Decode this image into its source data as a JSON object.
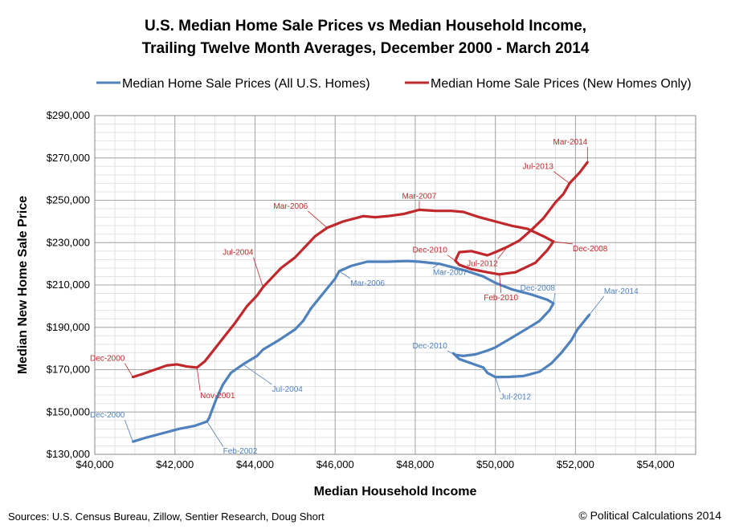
{
  "chart_data": {
    "type": "line",
    "title": "U.S. Median Home Sale Prices vs Median Household Income,",
    "subtitle": "Trailing Twelve Month Averages, December 2000 - March 2014",
    "xlabel": "Median Household Income",
    "ylabel": "Median New Home Sale Price",
    "xlim": [
      40000,
      55000
    ],
    "ylim": [
      130000,
      290000
    ],
    "x_ticks": [
      40000,
      42000,
      44000,
      46000,
      48000,
      50000,
      52000,
      54000
    ],
    "x_tick_labels": [
      "$40,000",
      "$42,000",
      "$44,000",
      "$46,000",
      "$48,000",
      "$50,000",
      "$52,000",
      "$54,000"
    ],
    "y_ticks": [
      130000,
      150000,
      170000,
      190000,
      210000,
      230000,
      250000,
      270000,
      290000
    ],
    "y_tick_labels": [
      "$130,000",
      "$150,000",
      "$170,000",
      "$190,000",
      "$210,000",
      "$230,000",
      "$250,000",
      "$270,000",
      "$290,000"
    ],
    "grid": true,
    "legend_position": "top",
    "series": [
      {
        "name": "Median Home Sale Prices (All U.S. Homes)",
        "color": "#4f81bd",
        "points": [
          [
            40950,
            136000
          ],
          [
            41300,
            138000
          ],
          [
            41700,
            140000
          ],
          [
            42100,
            142000
          ],
          [
            42500,
            143500
          ],
          [
            42800,
            145500
          ],
          [
            42850,
            147000
          ],
          [
            42950,
            152000
          ],
          [
            43050,
            157000
          ],
          [
            43200,
            163000
          ],
          [
            43400,
            168500
          ],
          [
            43700,
            172500
          ],
          [
            44050,
            176500
          ],
          [
            44200,
            179500
          ],
          [
            44600,
            184000
          ],
          [
            45000,
            189000
          ],
          [
            45200,
            193000
          ],
          [
            45400,
            199000
          ],
          [
            45700,
            206000
          ],
          [
            46000,
            213000
          ],
          [
            46100,
            216500
          ],
          [
            46400,
            219000
          ],
          [
            46800,
            221000
          ],
          [
            47300,
            221000
          ],
          [
            47800,
            221300
          ],
          [
            48100,
            221000
          ],
          [
            48600,
            220000
          ],
          [
            48900,
            218500
          ],
          [
            49300,
            216500
          ],
          [
            49700,
            214000
          ],
          [
            50000,
            211000
          ],
          [
            50400,
            208000
          ],
          [
            50900,
            205500
          ],
          [
            51300,
            203000
          ],
          [
            51450,
            201300
          ],
          [
            51350,
            198000
          ],
          [
            51100,
            193000
          ],
          [
            50800,
            189500
          ],
          [
            50400,
            185000
          ],
          [
            50000,
            180500
          ],
          [
            49800,
            179000
          ],
          [
            49500,
            177200
          ],
          [
            49200,
            176500
          ],
          [
            49000,
            177000
          ],
          [
            48950,
            177700
          ],
          [
            49100,
            175000
          ],
          [
            49400,
            173000
          ],
          [
            49700,
            171000
          ],
          [
            49800,
            168500
          ],
          [
            50000,
            166500
          ],
          [
            50350,
            166600
          ],
          [
            50700,
            167000
          ],
          [
            51100,
            169000
          ],
          [
            51400,
            173000
          ],
          [
            51650,
            178000
          ],
          [
            51900,
            184000
          ],
          [
            52050,
            189000
          ],
          [
            52200,
            192500
          ],
          [
            52350,
            196000
          ]
        ],
        "labels": [
          {
            "text": "Dec-2000",
            "index": 0
          },
          {
            "text": "Feb-2002",
            "index": 5
          },
          {
            "text": "Jul-2004",
            "index": 11
          },
          {
            "text": "Mar-2006",
            "index": 20
          },
          {
            "text": "Mar-2007",
            "index": 26
          },
          {
            "text": "Dec-2008",
            "index": 34
          },
          {
            "text": "Dec-2010",
            "index": 43
          },
          {
            "text": "Jul-2012",
            "index": 49
          },
          {
            "text": "Mar-2014",
            "index": 58
          }
        ]
      },
      {
        "name": "Median Home Sale Prices (New Homes Only)",
        "color": "#c0282c",
        "points": [
          [
            40950,
            166500
          ],
          [
            41200,
            168000
          ],
          [
            41500,
            170000
          ],
          [
            41800,
            172000
          ],
          [
            42050,
            172500
          ],
          [
            42300,
            171500
          ],
          [
            42550,
            171000
          ],
          [
            42750,
            174000
          ],
          [
            43000,
            180000
          ],
          [
            43250,
            186000
          ],
          [
            43500,
            192000
          ],
          [
            43800,
            200000
          ],
          [
            44050,
            205000
          ],
          [
            44200,
            209000
          ],
          [
            44400,
            213000
          ],
          [
            44650,
            218000
          ],
          [
            45000,
            223000
          ],
          [
            45300,
            229000
          ],
          [
            45500,
            233000
          ],
          [
            45800,
            237000
          ],
          [
            46200,
            240000
          ],
          [
            46700,
            242500
          ],
          [
            47000,
            242000
          ],
          [
            47300,
            242500
          ],
          [
            47700,
            243500
          ],
          [
            48100,
            245500
          ],
          [
            48500,
            245000
          ],
          [
            48900,
            245000
          ],
          [
            49200,
            244500
          ],
          [
            49600,
            242000
          ],
          [
            50000,
            240000
          ],
          [
            50400,
            238000
          ],
          [
            50800,
            236500
          ],
          [
            51200,
            233000
          ],
          [
            51450,
            230500
          ],
          [
            51300,
            226500
          ],
          [
            51000,
            220500
          ],
          [
            50500,
            216000
          ],
          [
            50100,
            215000
          ],
          [
            49800,
            216000
          ],
          [
            49400,
            217500
          ],
          [
            49100,
            219500
          ],
          [
            49000,
            221500
          ],
          [
            49100,
            225500
          ],
          [
            49400,
            226000
          ],
          [
            49800,
            224000
          ],
          [
            50000,
            225500
          ],
          [
            50300,
            228000
          ],
          [
            50600,
            231000
          ],
          [
            50900,
            236000
          ],
          [
            51200,
            241500
          ],
          [
            51500,
            249000
          ],
          [
            51700,
            253000
          ],
          [
            51850,
            258000
          ],
          [
            52100,
            263000
          ],
          [
            52300,
            268000
          ]
        ],
        "labels": [
          {
            "text": "Dec-2000",
            "index": 0
          },
          {
            "text": "Nov-2001",
            "index": 6
          },
          {
            "text": "Jul-2004",
            "index": 13
          },
          {
            "text": "Mar-2006",
            "index": 19
          },
          {
            "text": "Mar-2007",
            "index": 25
          },
          {
            "text": "Dec-2008",
            "index": 34
          },
          {
            "text": "Feb-2010",
            "index": 38
          },
          {
            "text": "Dec-2010",
            "index": 42
          },
          {
            "text": "Jul-2012",
            "index": 47
          },
          {
            "text": "Jul-2013",
            "index": 53
          },
          {
            "text": "Mar-2014",
            "index": 55
          }
        ]
      }
    ]
  },
  "footer": {
    "sources": "Sources:  U.S. Census Bureau, Zillow, Sentier Research, Doug Short",
    "copyright": "© Political Calculations 2014"
  }
}
